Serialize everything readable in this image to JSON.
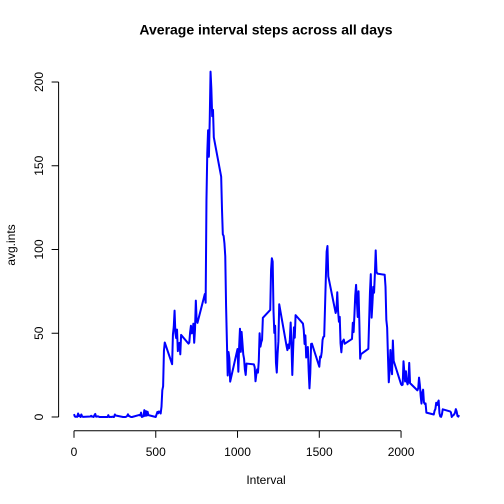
{
  "chart_data": {
    "type": "line",
    "title": "Average interval steps across all days",
    "x_label": "Interval",
    "y_label": "avg.ints",
    "x": [
      0,
      5,
      10,
      15,
      20,
      25,
      30,
      35,
      40,
      45,
      50,
      55,
      100,
      105,
      110,
      115,
      120,
      125,
      130,
      135,
      140,
      145,
      150,
      155,
      200,
      205,
      210,
      215,
      220,
      225,
      230,
      235,
      240,
      245,
      250,
      255,
      300,
      305,
      310,
      315,
      320,
      325,
      330,
      335,
      340,
      345,
      350,
      355,
      400,
      405,
      410,
      415,
      420,
      425,
      430,
      435,
      440,
      445,
      450,
      455,
      500,
      505,
      510,
      515,
      520,
      525,
      530,
      535,
      540,
      545,
      550,
      555,
      600,
      605,
      610,
      615,
      620,
      625,
      630,
      635,
      640,
      645,
      650,
      655,
      700,
      705,
      710,
      715,
      720,
      725,
      730,
      735,
      740,
      745,
      750,
      755,
      800,
      805,
      810,
      815,
      820,
      825,
      830,
      835,
      840,
      845,
      850,
      855,
      900,
      905,
      910,
      915,
      920,
      925,
      930,
      935,
      940,
      945,
      950,
      955,
      1000,
      1005,
      1010,
      1015,
      1020,
      1025,
      1030,
      1035,
      1040,
      1045,
      1050,
      1055,
      1100,
      1105,
      1110,
      1115,
      1120,
      1125,
      1130,
      1135,
      1140,
      1145,
      1150,
      1155,
      1200,
      1205,
      1210,
      1215,
      1220,
      1225,
      1230,
      1235,
      1240,
      1245,
      1250,
      1255,
      1300,
      1305,
      1310,
      1315,
      1320,
      1325,
      1330,
      1335,
      1340,
      1345,
      1350,
      1355,
      1400,
      1405,
      1410,
      1415,
      1420,
      1425,
      1430,
      1435,
      1440,
      1445,
      1450,
      1455,
      1500,
      1505,
      1510,
      1515,
      1520,
      1525,
      1530,
      1535,
      1540,
      1545,
      1550,
      1555,
      1600,
      1605,
      1610,
      1615,
      1620,
      1625,
      1630,
      1635,
      1640,
      1645,
      1650,
      1655,
      1700,
      1705,
      1710,
      1715,
      1720,
      1725,
      1730,
      1735,
      1740,
      1745,
      1750,
      1755,
      1800,
      1805,
      1810,
      1815,
      1820,
      1825,
      1830,
      1835,
      1840,
      1845,
      1850,
      1855,
      1900,
      1905,
      1910,
      1915,
      1920,
      1925,
      1930,
      1935,
      1940,
      1945,
      1950,
      1955,
      2000,
      2005,
      2010,
      2015,
      2020,
      2025,
      2030,
      2035,
      2040,
      2045,
      2050,
      2055,
      2100,
      2105,
      2110,
      2115,
      2120,
      2125,
      2130,
      2135,
      2140,
      2145,
      2150,
      2155,
      2200,
      2205,
      2210,
      2215,
      2220,
      2225,
      2230,
      2235,
      2240,
      2245,
      2250,
      2255,
      2300,
      2305,
      2310,
      2315,
      2320,
      2325,
      2330,
      2335,
      2340,
      2345,
      2350,
      2355
    ],
    "series": [
      {
        "name": "avg.ints",
        "color": "#0000ff",
        "values": [
          1.7,
          0.3,
          0.1,
          0.2,
          0.1,
          2.1,
          0.5,
          0.9,
          0,
          1.5,
          0.3,
          0.1,
          0.3,
          0.7,
          0.2,
          0.3,
          0,
          1.1,
          1.8,
          0.2,
          0.2,
          0.4,
          0.3,
          0,
          0,
          0,
          1.1,
          0,
          0,
          0.1,
          0,
          0.2,
          0,
          0,
          1.5,
          0.9,
          0,
          0,
          0,
          0,
          0.2,
          0.6,
          1.6,
          0.6,
          0.5,
          0.1,
          0,
          0,
          1.2,
          0.9,
          2.6,
          0,
          0.3,
          0.4,
          4.1,
          0.7,
          3.5,
          0.8,
          3.1,
          1.1,
          0,
          1.6,
          3,
          2.2,
          3.3,
          3,
          2.1,
          6.1,
          16,
          18.3,
          39.5,
          44.5,
          31.5,
          49.3,
          53.8,
          63.5,
          50,
          47.1,
          52.2,
          39.3,
          44,
          44.2,
          37.4,
          49,
          43.8,
          44.4,
          50.5,
          54.5,
          49.9,
          51,
          55.7,
          44.3,
          52.3,
          69.5,
          57.8,
          56.2,
          73.4,
          68.2,
          129.4,
          157.5,
          171.2,
          155.4,
          177.3,
          206.2,
          195.9,
          179.6,
          183.4,
          167,
          143.5,
          124,
          109.1,
          108.1,
          103.7,
          96,
          66.2,
          45.2,
          24.8,
          38.8,
          35,
          21.1,
          40.6,
          27,
          42.4,
          52.7,
          38.9,
          50.8,
          44.3,
          37.4,
          34.7,
          28.3,
          25.1,
          31.9,
          31.4,
          29.7,
          21.3,
          25.5,
          28.4,
          26.5,
          33.4,
          50,
          42,
          44.6,
          46,
          59.2,
          63.9,
          87.7,
          94.8,
          92.8,
          63.4,
          50.2,
          54.5,
          32.4,
          26.5,
          37.7,
          45.1,
          67.3,
          42.3,
          39.9,
          43.3,
          41,
          46.2,
          56.4,
          42.8,
          25.1,
          40,
          53.5,
          47.3,
          60.8,
          55.8,
          52,
          43.6,
          48.7,
          35.5,
          37.5,
          41.8,
          27.5,
          17.1,
          26.1,
          43.6,
          43.8,
          30,
          36.1,
          35.5,
          38.8,
          46,
          47.8,
          48.1,
          65.3,
          82.9,
          98.7,
          102.1,
          84,
          62.1,
          64.1,
          74.5,
          63.2,
          56.9,
          59.8,
          43.9,
          38.6,
          44.7,
          45.5,
          46.2,
          43.7,
          46.6,
          56.3,
          50.7,
          61.2,
          72.7,
          78.9,
          68.9,
          59.7,
          75.1,
          56.5,
          34.8,
          37.5,
          40.7,
          58,
          74.7,
          85.3,
          59.3,
          67.8,
          77.7,
          74.2,
          85.3,
          99.5,
          86.6,
          85.6,
          84.9,
          77.8,
          58,
          53.4,
          36.3,
          20.7,
          27.4,
          40,
          30.2,
          25.5,
          45.7,
          33.5,
          19.6,
          19,
          19.3,
          33.3,
          26.8,
          21.2,
          27.3,
          21.3,
          19.5,
          21.3,
          32.3,
          20.2,
          15.9,
          17.2,
          23.5,
          19.2,
          12.5,
          8,
          14.7,
          16.3,
          8.7,
          7.8,
          8.1,
          2.6,
          1.5,
          3.7,
          4.8,
          8.5,
          7.1,
          8.7,
          9.8,
          2.2,
          0.3,
          0.1,
          1.6,
          4.6,
          3.3,
          2.8,
          0,
          0.8,
          1,
          1.6,
          2.6,
          4.7,
          3.3,
          0.6,
          0.2,
          1.1
        ]
      }
    ],
    "xlim": [
      -94.2,
      2449.2
    ],
    "ylim": [
      -8.25,
      214.4
    ],
    "xticks": [
      0,
      500,
      1000,
      1500,
      2000
    ],
    "yticks": [
      0,
      50,
      100,
      150,
      200
    ]
  }
}
